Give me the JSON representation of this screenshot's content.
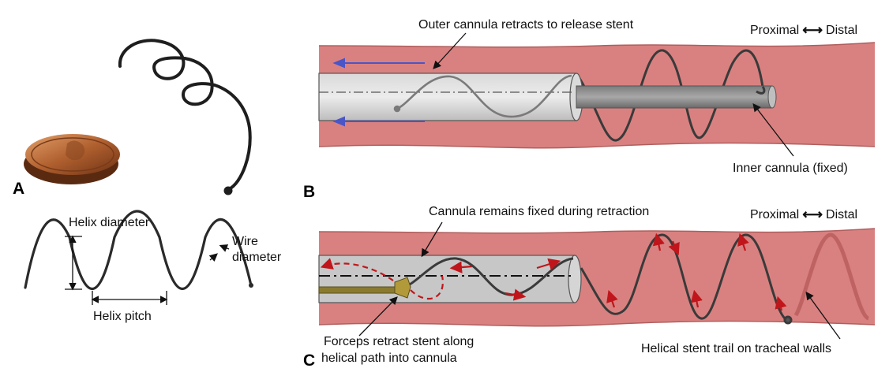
{
  "panels": {
    "a": "A",
    "b": "B",
    "c": "C"
  },
  "panel_a": {
    "helix_diameter": "Helix diameter",
    "wire_diameter_1": "Wire",
    "wire_diameter_2": "diameter",
    "helix_pitch": "Helix pitch"
  },
  "panel_b": {
    "outer_cannula": "Outer cannula retracts to release stent",
    "inner_cannula": "Inner cannula (fixed)",
    "proximal": "Proximal",
    "distal": "Distal",
    "double_arrow": "⟷"
  },
  "panel_c": {
    "cannula_fixed": "Cannula remains fixed during retraction",
    "forceps_1": "Forceps retract stent along",
    "forceps_2": "helical path into cannula",
    "trail": "Helical stent trail on tracheal walls",
    "proximal": "Proximal",
    "distal": "Distal",
    "double_arrow": "⟷"
  },
  "colors": {
    "trachea_fill": "#d98180",
    "trachea_edge": "#b05e5d",
    "cannula_fill": "#c8c8c8",
    "inner_cannula": "#8c8c8c",
    "wire": "#3a3a3a",
    "flow_arrow": "#4a55c8",
    "retraction_arrow": "#c0161b",
    "penny": "#a8542a"
  }
}
